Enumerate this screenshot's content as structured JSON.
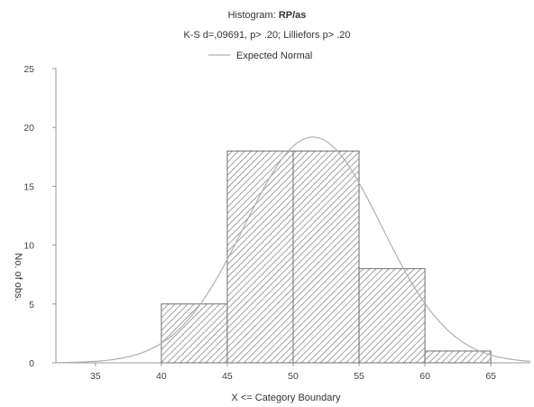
{
  "chart_data": {
    "type": "bar",
    "histogram_prefix": "Histogram: ",
    "variable": "RP/as",
    "subtitle": "K-S d=,09691, p> .20; Lilliefors p> .20",
    "legend": "Expected Normal",
    "xlabel": "X <= Category Boundary",
    "ylabel": "No. of obs.",
    "categories": [
      "35-40",
      "40-45",
      "45-50",
      "50-55",
      "55-60",
      "60-65"
    ],
    "bins": [
      {
        "lower": 35,
        "upper": 40,
        "count": 0
      },
      {
        "lower": 40,
        "upper": 45,
        "count": 5
      },
      {
        "lower": 45,
        "upper": 50,
        "count": 18
      },
      {
        "lower": 50,
        "upper": 55,
        "count": 18
      },
      {
        "lower": 55,
        "upper": 60,
        "count": 8
      },
      {
        "lower": 60,
        "upper": 65,
        "count": 1
      }
    ],
    "values": [
      0,
      5,
      18,
      18,
      8,
      1
    ],
    "x_ticks": [
      35,
      40,
      45,
      50,
      55,
      60,
      65
    ],
    "y_ticks": [
      0,
      5,
      10,
      15,
      20,
      25
    ],
    "xlim": [
      32,
      68
    ],
    "ylim": [
      0,
      25
    ],
    "expected_normal_curve": {
      "mean": 51.5,
      "sd": 5.2,
      "bin_width": 5,
      "n": 50
    },
    "grid": false,
    "legend_position": "top-center",
    "colors": {
      "bar_edge": "#6f6f6f",
      "hatch": "#8a8a8a",
      "axis": "#9a9a9a",
      "curve": "#b0b0b0"
    }
  }
}
